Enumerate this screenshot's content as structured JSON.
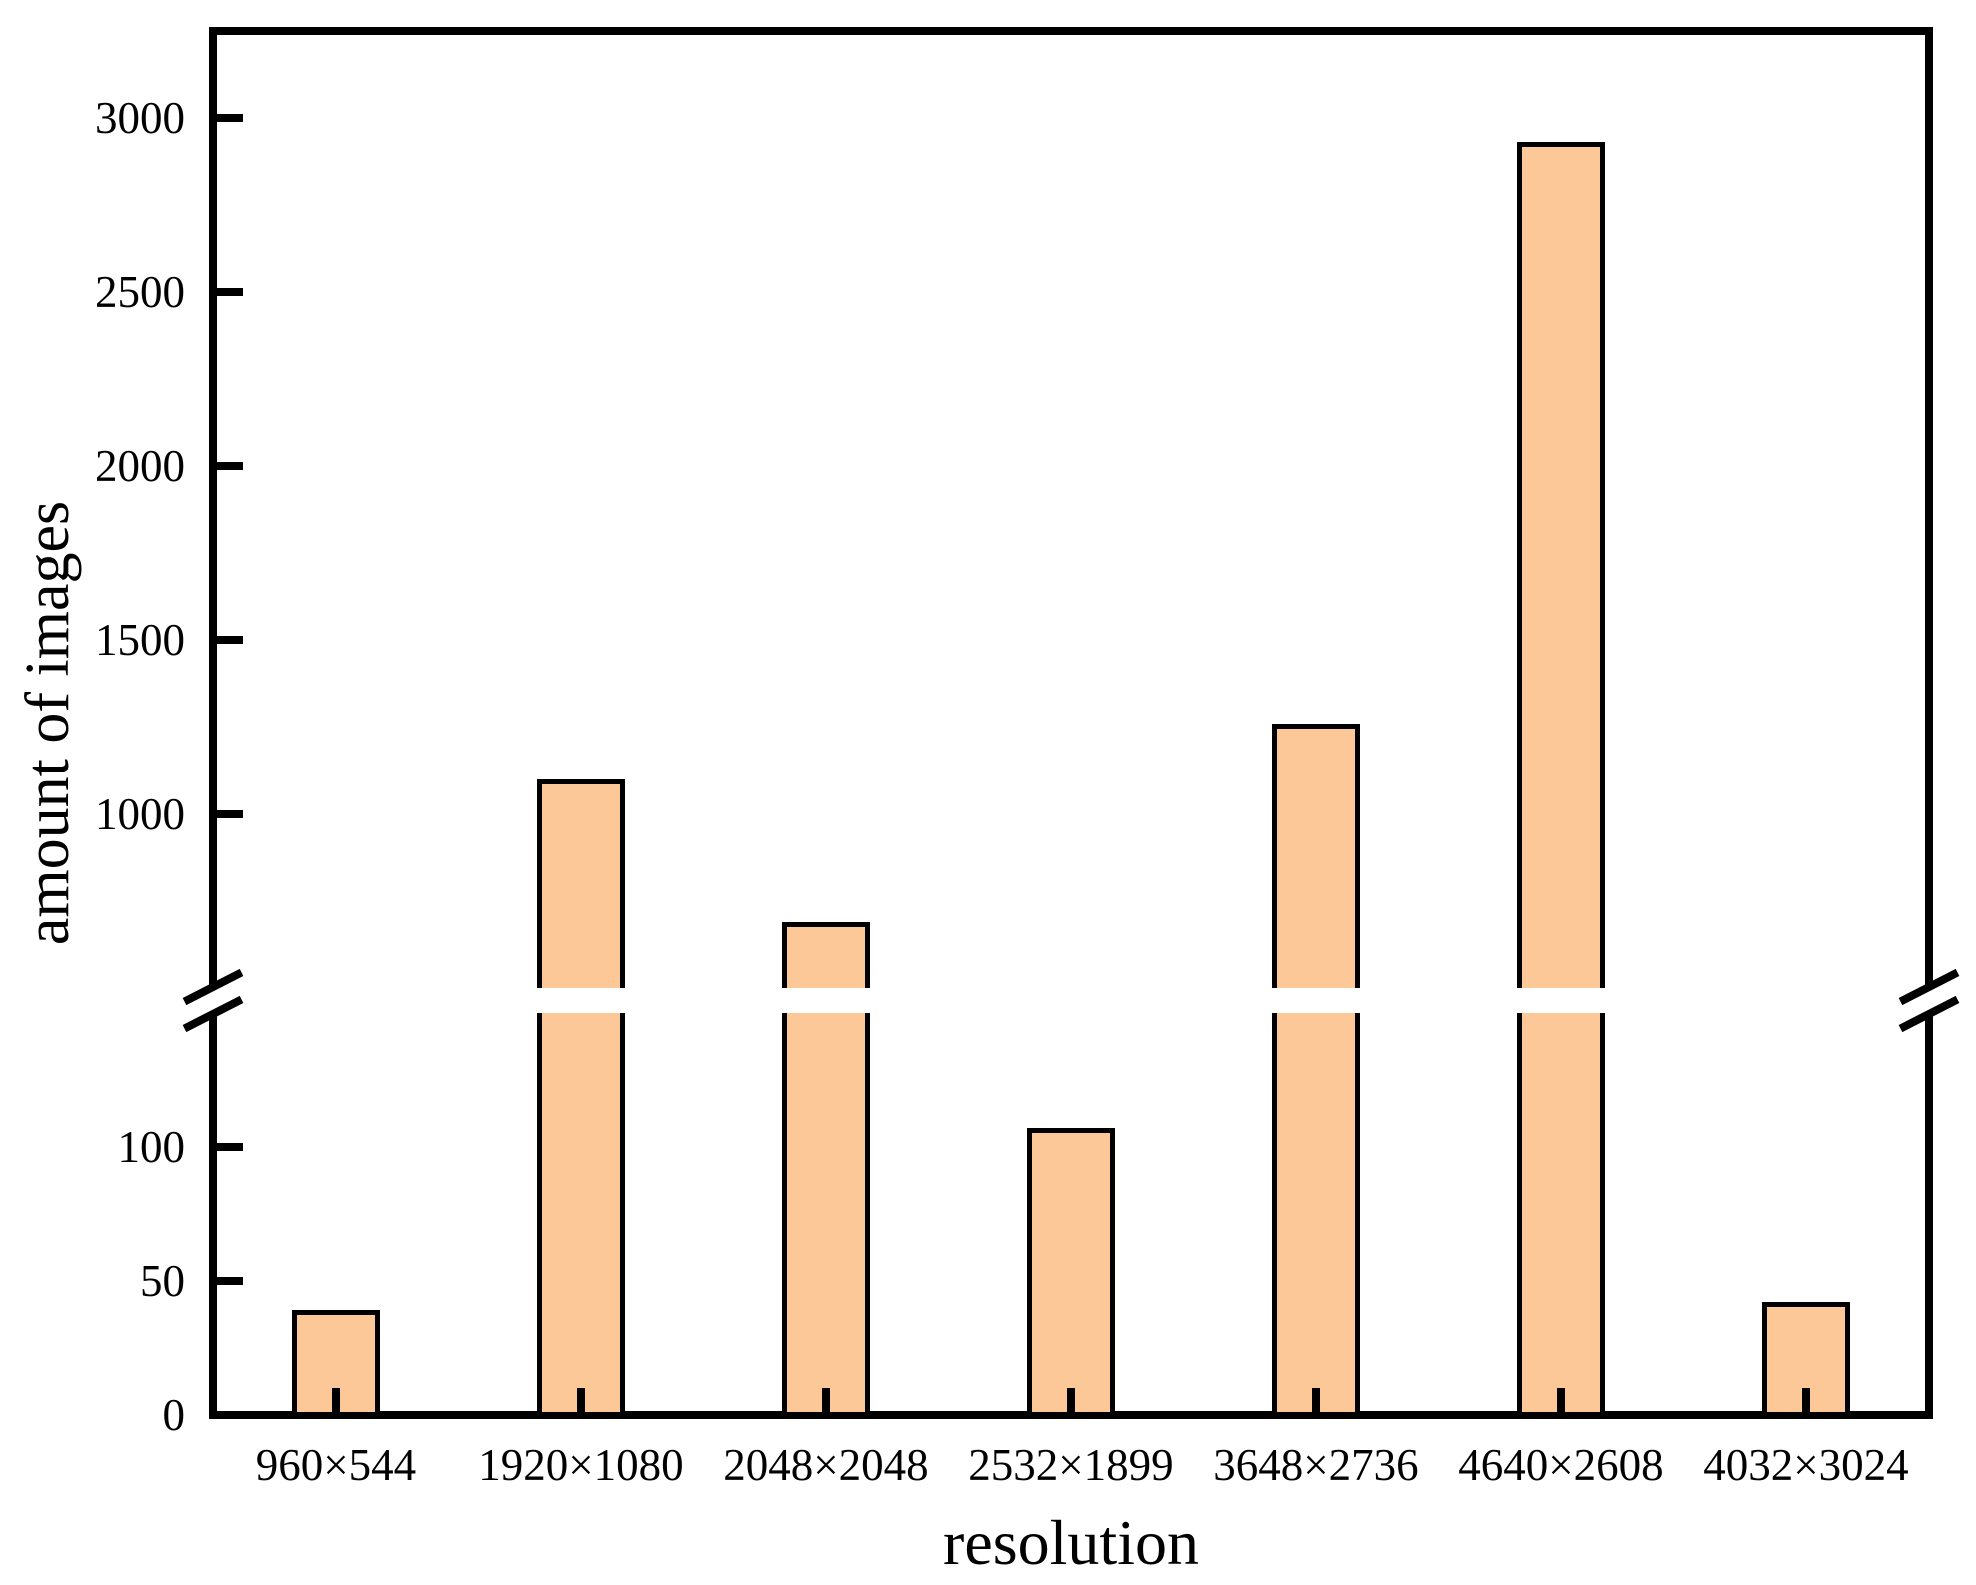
{
  "chart_data": {
    "type": "bar",
    "title": "",
    "xlabel": "resolution",
    "ylabel": "amount of images",
    "categories": [
      "960×544",
      "1920×1080",
      "2048×2048",
      "2532×1899",
      "3648×2736",
      "4640×2608",
      "4032×3024"
    ],
    "values": [
      39,
      1100,
      690,
      107,
      1260,
      2930,
      42
    ],
    "bar_color": "#FCC898",
    "bar_border_color": "#000000",
    "axis_color": "#000000",
    "text_color": "#000000",
    "background_color": "#FFFFFF",
    "grid": false,
    "legend": null,
    "broken_y_axis": {
      "lower_range": [
        0,
        150
      ],
      "lower_ticks": [
        0,
        50,
        100
      ],
      "upper_range": [
        500,
        3250
      ],
      "upper_ticks": [
        1000,
        1500,
        2000,
        2500,
        3000
      ]
    }
  }
}
